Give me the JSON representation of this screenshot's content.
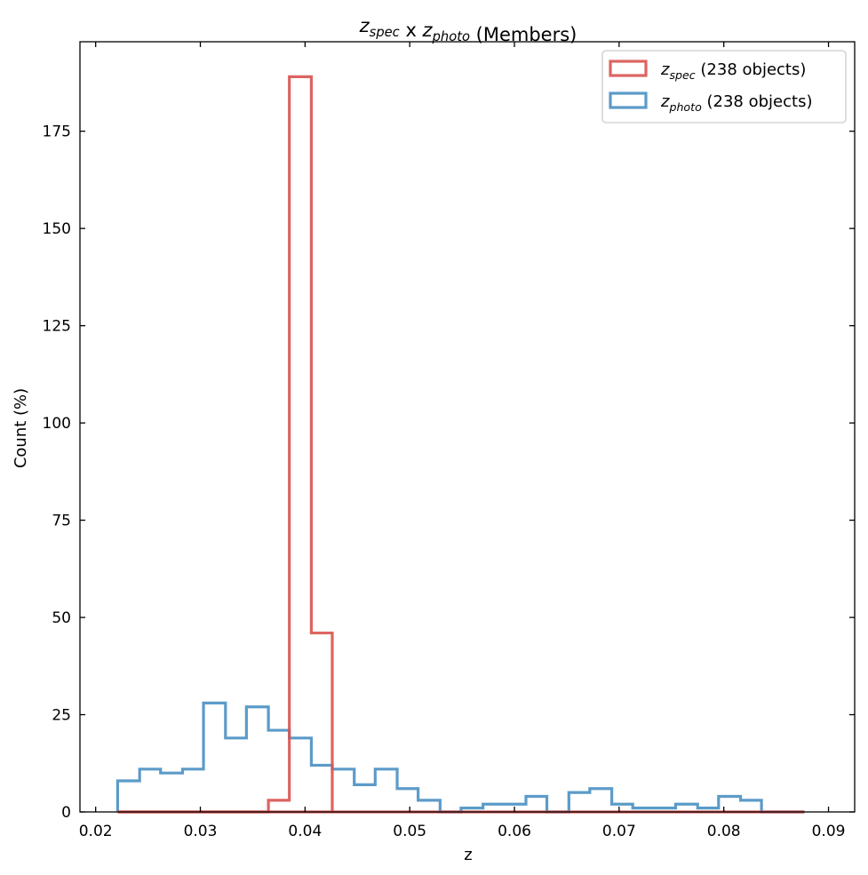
{
  "chart_data": {
    "type": "histogram",
    "title": {
      "parts": [
        {
          "text": "z",
          "sub": "spec"
        },
        {
          "text": " x "
        },
        {
          "text": "z",
          "sub": "photo"
        },
        {
          "text": " (Members)"
        }
      ]
    },
    "xlabel": "z",
    "ylabel": "Count (%)",
    "xlim": [
      0.0185,
      0.0925
    ],
    "ylim": [
      0,
      198
    ],
    "xticks": [
      0.02,
      0.03,
      0.04,
      0.05,
      0.06,
      0.07,
      0.08,
      0.09
    ],
    "xtick_labels": [
      "0.02",
      "0.03",
      "0.04",
      "0.05",
      "0.06",
      "0.07",
      "0.08",
      "0.09"
    ],
    "yticks": [
      0,
      25,
      50,
      75,
      100,
      125,
      150,
      175
    ],
    "ytick_labels": [
      "0",
      "25",
      "50",
      "75",
      "100",
      "125",
      "150",
      "175"
    ],
    "grid": false,
    "legend_position": "top-right",
    "series": [
      {
        "name_main": "z",
        "name_sub": "spec",
        "name_suffix": " (238 objects)",
        "color": "#d9534f",
        "edges": [
          0.0221,
          0.0242,
          0.0262,
          0.0283,
          0.0303,
          0.0324,
          0.0344,
          0.0365,
          0.0385,
          0.0406,
          0.0426
        ],
        "counts": [
          0,
          0,
          0,
          0,
          0,
          0,
          0,
          3,
          189,
          46
        ]
      },
      {
        "name_main": "z",
        "name_sub": "photo",
        "name_suffix": " (238 objects)",
        "color": "#4a90c2",
        "edges": [
          0.0221,
          0.0242,
          0.0262,
          0.0283,
          0.0303,
          0.0324,
          0.0344,
          0.0365,
          0.0385,
          0.0406,
          0.0426,
          0.0447,
          0.0467,
          0.0488,
          0.0508,
          0.0529,
          0.0549,
          0.057,
          0.059,
          0.0611,
          0.0631,
          0.0652,
          0.0672,
          0.0693,
          0.0713,
          0.0734,
          0.0754,
          0.0775,
          0.0795,
          0.0816,
          0.0836,
          0.0857,
          0.0877
        ],
        "counts": [
          8,
          11,
          10,
          11,
          28,
          19,
          27,
          21,
          19,
          12,
          11,
          7,
          11,
          6,
          3,
          0,
          1,
          2,
          2,
          4,
          0,
          5,
          6,
          2,
          1,
          1,
          2,
          1,
          4,
          3,
          0,
          0
        ]
      }
    ],
    "baseline_extend": [
      0.0221,
      0.0877
    ]
  }
}
